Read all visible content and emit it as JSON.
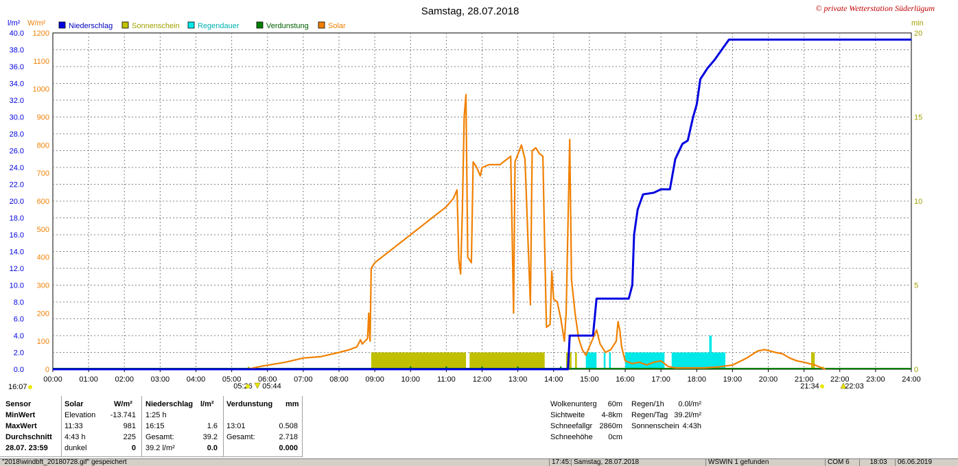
{
  "title": "Samstag, 28.07.2018",
  "copyright": "© private Wetterstation Süderlügum",
  "legend": [
    {
      "name": "Niederschlag",
      "color": "#0000e0"
    },
    {
      "name": "Sonnenschein",
      "color": "#c0c000"
    },
    {
      "name": "Regendauer",
      "color": "#00e8e8"
    },
    {
      "name": "Verdunstung",
      "color": "#008000"
    },
    {
      "name": "Solar",
      "color": "#f08000"
    }
  ],
  "chart_data": {
    "type": "line",
    "title": "Samstag, 28.07.2018",
    "x_ticks": [
      "00:00",
      "01:00",
      "02:00",
      "03:00",
      "04:00",
      "05:00",
      "06:00",
      "07:00",
      "08:00",
      "09:00",
      "10:00",
      "11:00",
      "12:00",
      "13:00",
      "14:00",
      "15:00",
      "16:00",
      "17:00",
      "18:00",
      "19:00",
      "20:00",
      "21:00",
      "22:00",
      "23:00",
      "24:00"
    ],
    "xlim": [
      0,
      24
    ],
    "axes": {
      "left_outer": {
        "unit": "l/m²",
        "range": [
          0,
          40
        ],
        "ticks": [
          "0.0",
          "2.0",
          "4.0",
          "6.0",
          "8.0",
          "10.0",
          "12.0",
          "14.0",
          "16.0",
          "18.0",
          "20.0",
          "22.0",
          "24.0",
          "26.0",
          "28.0",
          "30.0",
          "32.0",
          "34.0",
          "36.0",
          "38.0",
          "40.0"
        ],
        "color": "#0000e0"
      },
      "left_inner": {
        "unit": "W/m²",
        "range": [
          0,
          1200
        ],
        "ticks": [
          "0",
          "100",
          "200",
          "300",
          "400",
          "500",
          "600",
          "700",
          "800",
          "900",
          "1000",
          "1100",
          "1200"
        ],
        "color": "#f08000"
      },
      "right": {
        "unit": "min",
        "range": [
          0,
          20
        ],
        "ticks": [
          "0",
          "5",
          "10",
          "15",
          "20"
        ],
        "color": "#a0a000"
      }
    },
    "grid": true,
    "series": [
      {
        "name": "Niederschlag",
        "axis": "left_outer",
        "color": "#0000e0",
        "points": [
          [
            0,
            0
          ],
          [
            14.4,
            0
          ],
          [
            14.45,
            4
          ],
          [
            15.1,
            4
          ],
          [
            15.2,
            8.4
          ],
          [
            16.1,
            8.4
          ],
          [
            16.2,
            10
          ],
          [
            16.25,
            16
          ],
          [
            16.35,
            19
          ],
          [
            16.5,
            20.8
          ],
          [
            16.8,
            21
          ],
          [
            17.0,
            21.4
          ],
          [
            17.25,
            21.4
          ],
          [
            17.4,
            25
          ],
          [
            17.6,
            26.8
          ],
          [
            17.75,
            27.2
          ],
          [
            17.9,
            30
          ],
          [
            18.0,
            31.5
          ],
          [
            18.1,
            34.5
          ],
          [
            18.3,
            35.8
          ],
          [
            18.5,
            36.8
          ],
          [
            18.7,
            38
          ],
          [
            18.9,
            39.2
          ],
          [
            24,
            39.2
          ]
        ]
      },
      {
        "name": "Solar",
        "axis": "left_inner",
        "color": "#f08000",
        "points": [
          [
            5.45,
            0
          ],
          [
            5.8,
            10
          ],
          [
            6.5,
            25
          ],
          [
            7.0,
            40
          ],
          [
            7.5,
            45
          ],
          [
            8.0,
            60
          ],
          [
            8.3,
            70
          ],
          [
            8.5,
            80
          ],
          [
            8.6,
            105
          ],
          [
            8.65,
            90
          ],
          [
            8.8,
            110
          ],
          [
            8.83,
            200
          ],
          [
            8.87,
            100
          ],
          [
            8.9,
            360
          ],
          [
            9.0,
            380
          ],
          [
            9.5,
            430
          ],
          [
            10.0,
            480
          ],
          [
            10.5,
            530
          ],
          [
            11.0,
            580
          ],
          [
            11.2,
            610
          ],
          [
            11.3,
            640
          ],
          [
            11.35,
            390
          ],
          [
            11.4,
            340
          ],
          [
            11.45,
            570
          ],
          [
            11.5,
            900
          ],
          [
            11.55,
            980
          ],
          [
            11.6,
            400
          ],
          [
            11.7,
            380
          ],
          [
            11.75,
            740
          ],
          [
            11.85,
            720
          ],
          [
            11.95,
            690
          ],
          [
            12.0,
            720
          ],
          [
            12.2,
            730
          ],
          [
            12.5,
            730
          ],
          [
            12.7,
            750
          ],
          [
            12.8,
            760
          ],
          [
            12.88,
            200
          ],
          [
            12.92,
            740
          ],
          [
            13.1,
            800
          ],
          [
            13.2,
            750
          ],
          [
            13.35,
            230
          ],
          [
            13.4,
            780
          ],
          [
            13.5,
            790
          ],
          [
            13.6,
            770
          ],
          [
            13.7,
            760
          ],
          [
            13.75,
            440
          ],
          [
            13.8,
            150
          ],
          [
            13.9,
            160
          ],
          [
            13.95,
            350
          ],
          [
            14.0,
            250
          ],
          [
            14.1,
            240
          ],
          [
            14.2,
            180
          ],
          [
            14.3,
            100
          ],
          [
            14.35,
            200
          ],
          [
            14.4,
            510
          ],
          [
            14.45,
            820
          ],
          [
            14.5,
            320
          ],
          [
            14.6,
            200
          ],
          [
            14.7,
            110
          ],
          [
            14.8,
            70
          ],
          [
            14.9,
            50
          ],
          [
            15.0,
            80
          ],
          [
            15.1,
            110
          ],
          [
            15.2,
            140
          ],
          [
            15.3,
            90
          ],
          [
            15.45,
            60
          ],
          [
            15.6,
            70
          ],
          [
            15.75,
            100
          ],
          [
            15.8,
            170
          ],
          [
            15.85,
            140
          ],
          [
            15.9,
            80
          ],
          [
            16.0,
            30
          ],
          [
            16.2,
            20
          ],
          [
            16.4,
            25
          ],
          [
            16.6,
            15
          ],
          [
            16.8,
            25
          ],
          [
            17.0,
            30
          ],
          [
            17.2,
            10
          ],
          [
            17.4,
            5
          ],
          [
            17.8,
            5
          ],
          [
            18.2,
            5
          ],
          [
            18.6,
            8
          ],
          [
            19.0,
            15
          ],
          [
            19.4,
            40
          ],
          [
            19.7,
            65
          ],
          [
            19.9,
            70
          ],
          [
            20.2,
            60
          ],
          [
            20.4,
            55
          ],
          [
            20.6,
            40
          ],
          [
            20.8,
            30
          ],
          [
            21.0,
            25
          ],
          [
            21.3,
            15
          ],
          [
            21.5,
            5
          ],
          [
            21.6,
            0
          ]
        ]
      },
      {
        "name": "Sonnenschein",
        "axis": "right",
        "color": "#c0c000",
        "type": "bar",
        "bars": [
          [
            8.9,
            11.55,
            1
          ],
          [
            11.65,
            13.75,
            1
          ],
          [
            14.35,
            14.5,
            1
          ],
          [
            14.6,
            14.65,
            1
          ],
          [
            21.2,
            21.3,
            1
          ],
          [
            5.45,
            5.5,
            0.15
          ],
          [
            21.5,
            21.55,
            0.15
          ]
        ]
      },
      {
        "name": "Regendauer",
        "axis": "right",
        "color": "#00e8e8",
        "type": "bar",
        "bars": [
          [
            14.9,
            15.2,
            1
          ],
          [
            15.4,
            15.45,
            1
          ],
          [
            15.55,
            15.6,
            1
          ],
          [
            16.0,
            17.1,
            1
          ],
          [
            17.3,
            18.8,
            1
          ],
          [
            18.35,
            18.42,
            2
          ]
        ]
      },
      {
        "name": "Verdunstung",
        "axis": "left_outer",
        "color": "#008000",
        "values_note": "near zero"
      }
    ],
    "sun_markers": [
      {
        "label": "05:26",
        "pos": "sunrise"
      },
      {
        "label": "05:44",
        "pos": "civil"
      },
      {
        "label": "21:34",
        "pos": "sunset"
      },
      {
        "label": "22:03",
        "pos": "civil"
      }
    ],
    "corner_label": "16:07"
  },
  "table": {
    "headers": {
      "sensor": "Sensor",
      "solar": "Solar",
      "solar_unit": "W/m²",
      "rain": "Niederschlag",
      "rain_unit": "l/m²",
      "evap": "Verdunstung",
      "evap_unit": "mm"
    },
    "rows": [
      {
        "label": "MinWert",
        "solar_name": "Elevation",
        "solar_val": "-13.741",
        "rain_name": "1:25 h",
        "rain_val": "",
        "evap_name": "",
        "evap_val": ""
      },
      {
        "label": "MaxWert",
        "solar_name": "11:33",
        "solar_val": "981",
        "rain_name": "16:15",
        "rain_val": "1.6",
        "evap_name": "13:01",
        "evap_val": "0.508"
      },
      {
        "label": "Durchschnitt",
        "solar_name": "4:43 h",
        "solar_val": "225",
        "rain_name": "Gesamt:",
        "rain_val": "39.2",
        "evap_name": "Gesamt:",
        "evap_val": "2.718"
      },
      {
        "label": "28.07. 23:59",
        "solar_name": "dunkel",
        "solar_val": "0",
        "rain_name": "39.2 l/m²",
        "rain_val": "0.0",
        "evap_name": "",
        "evap_val": "0.000"
      }
    ],
    "extra1": [
      {
        "k": "Wolkenunterg",
        "v": "60m"
      },
      {
        "k": "Sichtweite",
        "v": "4-8km"
      },
      {
        "k": "Schneefallgr",
        "v": "2860m"
      },
      {
        "k": "Schneehöhe",
        "v": "0cm"
      }
    ],
    "extra2": [
      {
        "k": "Regen/1h",
        "v": "0.0l/m²"
      },
      {
        "k": "Regen/Tag",
        "v": "39.2l/m²"
      },
      {
        "k": "Sonnenschein",
        "v": "4:43h"
      }
    ]
  },
  "statusbar": {
    "file": "\"2018\\windbft_20180728.gif\" gespeichert",
    "time": "17:45:48",
    "date": "Samstag, 28.07.2018",
    "app": "WSWIN 1 gefunden",
    "port": "COM 6",
    "clock": "18:03",
    "today": "06.06.2019"
  }
}
